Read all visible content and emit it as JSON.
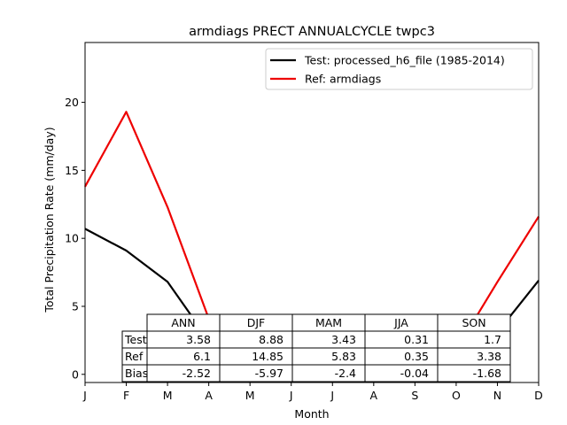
{
  "chart_data": {
    "type": "line",
    "title": "armdiags PRECT ANNUALCYCLE twpc3",
    "xlabel": "Month",
    "ylabel": "Total Precipitation Rate (mm/day)",
    "x": [
      "J",
      "F",
      "M",
      "A",
      "M",
      "J",
      "J",
      "A",
      "S",
      "O",
      "N",
      "D"
    ],
    "ylim": [
      -0.6,
      24.4
    ],
    "yticks": [
      0,
      5,
      10,
      15,
      20
    ],
    "grid": false,
    "legend_position": "top-right",
    "series": [
      {
        "name": "Test: processed_h6_file (1985-2014)",
        "color": "#000000",
        "values": [
          10.7,
          9.1,
          6.8,
          2.5,
          0.9,
          0.35,
          0.3,
          0.45,
          0.75,
          1.3,
          3.1,
          6.9
        ]
      },
      {
        "name": "Ref: armdiags",
        "color": "#ee0000",
        "values": [
          13.8,
          19.3,
          12.3,
          4.1,
          1.1,
          0.5,
          0.3,
          0.35,
          1.7,
          1.8,
          6.8,
          11.6
        ]
      }
    ],
    "table": {
      "col_labels": [
        "ANN",
        "DJF",
        "MAM",
        "JJA",
        "SON"
      ],
      "rows": [
        {
          "label": "Test",
          "values": [
            "3.58",
            "8.88",
            "3.43",
            "0.31",
            "1.7"
          ]
        },
        {
          "label": "Ref",
          "values": [
            "6.1",
            "14.85",
            "5.83",
            "0.35",
            "3.38"
          ]
        },
        {
          "label": "Bias",
          "values": [
            "-2.52",
            "-5.97",
            "-2.4",
            "-0.04",
            "-1.68"
          ]
        }
      ]
    }
  }
}
